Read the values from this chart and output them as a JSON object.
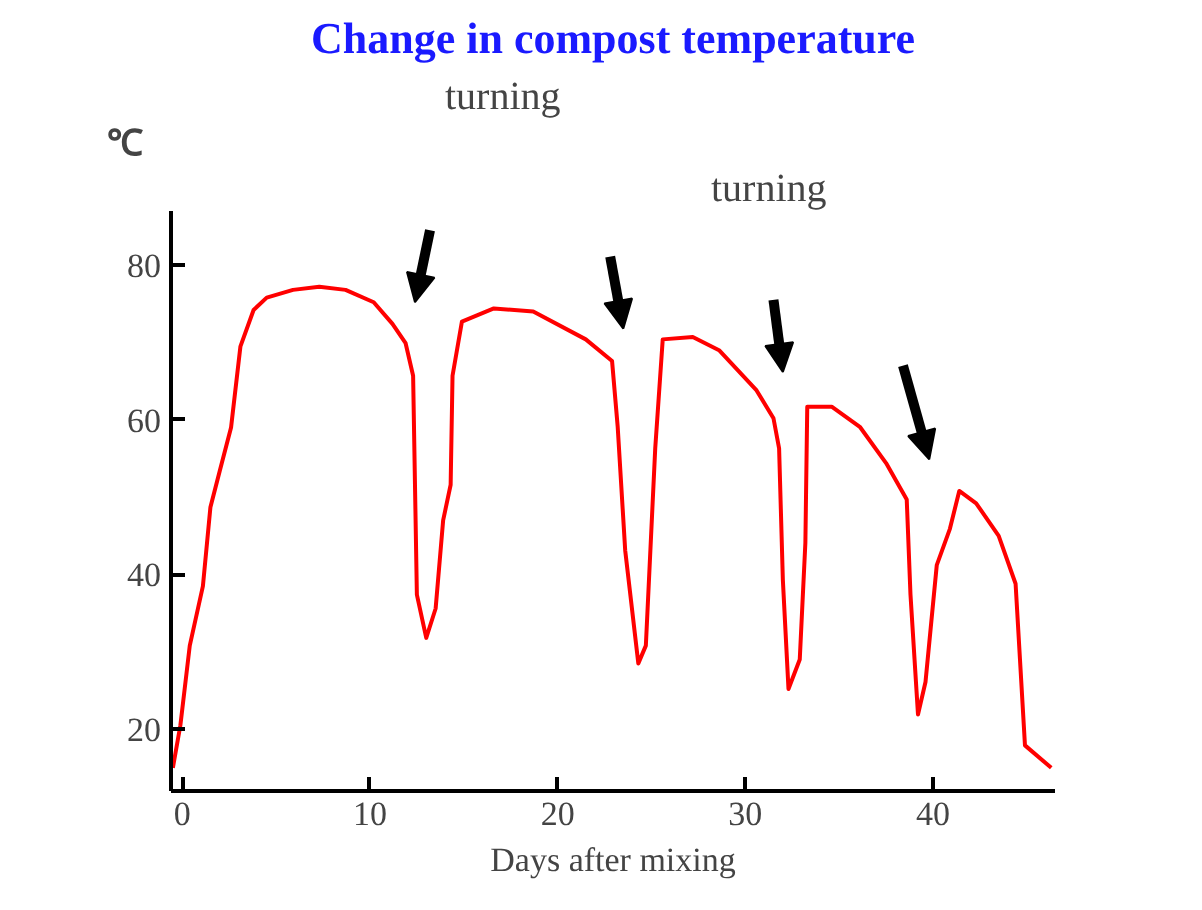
{
  "chart_data": {
    "type": "line",
    "title": "Change in compost temperature",
    "xlabel": "Days after mixing",
    "ylabel": "℃",
    "x": [
      -0.5,
      -0.1,
      0.4,
      1.1,
      1.5,
      2.0,
      2.6,
      3.1,
      3.8,
      4.5,
      5.9,
      7.3,
      8.7,
      10.2,
      11.2,
      11.9,
      12.3,
      12.5,
      13.0,
      13.5,
      13.9,
      14.3,
      14.4,
      14.9,
      16.6,
      18.7,
      21.5,
      22.9,
      23.2,
      23.6,
      24.3,
      24.7,
      25.2,
      25.6,
      27.2,
      28.6,
      30.6,
      31.5,
      31.8,
      32.0,
      32.3,
      32.9,
      33.2,
      33.3,
      34.6,
      36.1,
      37.5,
      38.6,
      38.8,
      39.2,
      39.6,
      40.2,
      40.9,
      41.4,
      42.3,
      43.5,
      44.4,
      44.9,
      46.3
    ],
    "series": [
      {
        "color": "#ff0000",
        "values": [
          15,
          20.5,
          30.8,
          38.5,
          48.7,
          53.4,
          59,
          69.5,
          74.2,
          75.8,
          76.8,
          77.2,
          76.8,
          75.2,
          72.4,
          69.9,
          65.7,
          37.4,
          31.8,
          35.6,
          47,
          51.6,
          65.7,
          72.7,
          74.4,
          74,
          70.4,
          67.6,
          59.1,
          43.1,
          28.5,
          30.8,
          56.3,
          70.4,
          70.7,
          69,
          63.8,
          60.2,
          56.3,
          39.3,
          25.2,
          29,
          44.1,
          61.7,
          61.7,
          59.1,
          54.4,
          49.7,
          37.4,
          21.9,
          26.1,
          41.2,
          45.9,
          50.8,
          49.2,
          45,
          38.8,
          17.9,
          15
        ]
      }
    ],
    "xlim": [
      -0.6,
      46.5
    ],
    "ylim": [
      12,
      87
    ],
    "xticks": [
      0,
      10,
      20,
      30,
      40
    ],
    "yticks": [
      20,
      40,
      60,
      80
    ],
    "annotations": [
      "turning",
      "turning"
    ],
    "grid": false,
    "marker": "none",
    "line_style": "solid"
  }
}
